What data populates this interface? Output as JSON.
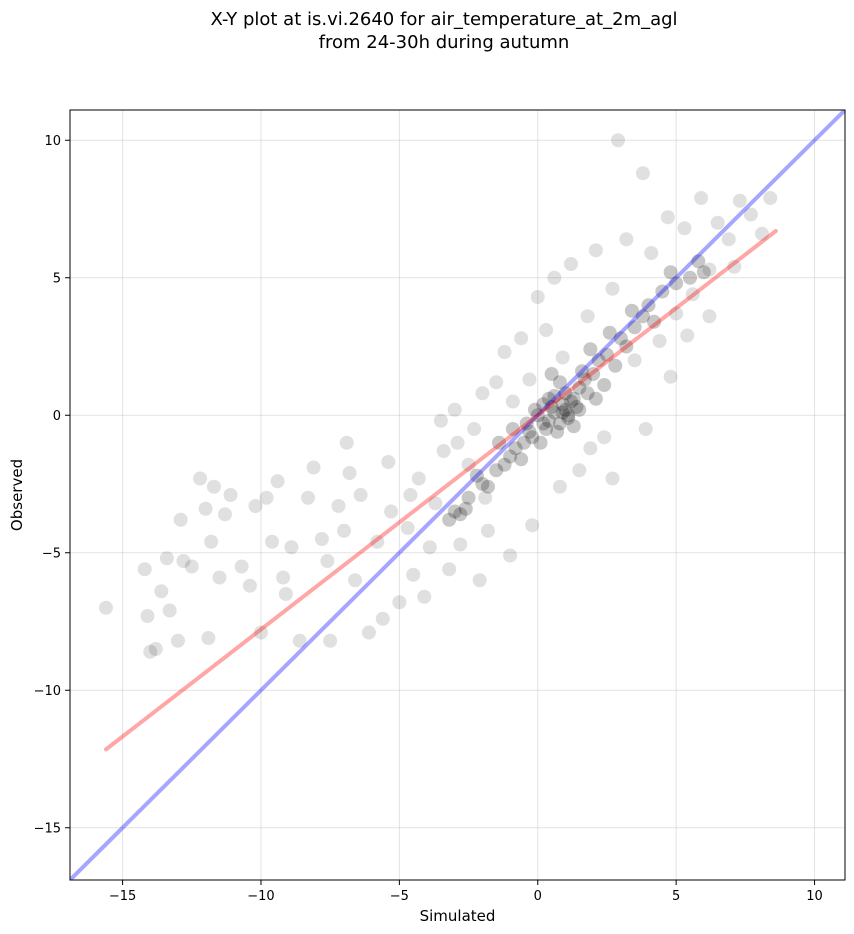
{
  "chart_data": {
    "type": "scatter",
    "title_lines": [
      "X-Y plot at is.vi.2640 for air_temperature_at_2m_agl",
      "from 24-30h during autumn"
    ],
    "xlabel": "Simulated",
    "ylabel": "Observed",
    "xlim": [
      -16.9,
      11.1
    ],
    "ylim": [
      -16.9,
      11.1
    ],
    "xticks": [
      -15,
      -10,
      -5,
      0,
      5,
      10
    ],
    "yticks": [
      -15,
      -10,
      -5,
      0,
      5,
      10
    ],
    "xtick_labels": [
      "−15",
      "−10",
      "−5",
      "0",
      "5",
      "10"
    ],
    "ytick_labels": [
      "−15",
      "−10",
      "−5",
      "0",
      "5",
      "10"
    ],
    "grid": true,
    "colors": {
      "points": "#000000",
      "identity_line": "#0000ff",
      "regression_line": "#ff0000"
    },
    "identity_line": {
      "x": [
        -16.9,
        11.1
      ],
      "y": [
        -16.9,
        11.1
      ]
    },
    "regression_line": {
      "x": [
        -15.6,
        8.6
      ],
      "y": [
        -12.15,
        6.7
      ]
    },
    "points_dense": [
      [
        0.0,
        0.0
      ],
      [
        0.5,
        0.3
      ],
      [
        1.0,
        0.2
      ],
      [
        0.8,
        -0.3
      ],
      [
        1.2,
        0.5
      ],
      [
        0.3,
        -0.5
      ],
      [
        -0.2,
        -0.8
      ],
      [
        1.5,
        1.0
      ],
      [
        2.0,
        1.5
      ],
      [
        1.8,
        0.8
      ],
      [
        0.6,
        0.7
      ],
      [
        -0.5,
        -1.0
      ],
      [
        -1.0,
        -1.5
      ],
      [
        -1.5,
        -2.0
      ],
      [
        -2.0,
        -2.5
      ],
      [
        -2.5,
        -3.0
      ],
      [
        -3.0,
        -3.5
      ],
      [
        -2.8,
        -3.6
      ],
      [
        -2.6,
        -3.4
      ],
      [
        -3.2,
        -3.8
      ],
      [
        -1.2,
        -1.8
      ],
      [
        -0.8,
        -1.2
      ],
      [
        0.2,
        0.4
      ],
      [
        0.9,
        0.1
      ],
      [
        1.1,
        -0.1
      ],
      [
        1.4,
        0.3
      ],
      [
        2.2,
        2.0
      ],
      [
        2.5,
        2.2
      ],
      [
        3.0,
        2.8
      ],
      [
        3.5,
        3.2
      ],
      [
        3.8,
        3.6
      ],
      [
        4.0,
        4.0
      ],
      [
        4.5,
        4.5
      ],
      [
        5.0,
        4.8
      ],
      [
        5.5,
        5.0
      ],
      [
        6.0,
        5.2
      ],
      [
        2.8,
        1.8
      ],
      [
        3.2,
        2.5
      ],
      [
        1.6,
        1.6
      ],
      [
        0.4,
        -0.2
      ],
      [
        -0.4,
        -0.3
      ],
      [
        -0.1,
        0.2
      ],
      [
        0.7,
        -0.6
      ],
      [
        1.3,
        -0.4
      ],
      [
        0.1,
        -1.0
      ],
      [
        -0.6,
        -1.6
      ],
      [
        -1.8,
        -2.6
      ],
      [
        -2.2,
        -2.2
      ],
      [
        -1.4,
        -1.0
      ],
      [
        -0.9,
        -0.5
      ],
      [
        1.0,
        0.8
      ],
      [
        0.8,
        1.2
      ],
      [
        1.7,
        1.3
      ],
      [
        2.4,
        1.1
      ],
      [
        2.1,
        0.6
      ],
      [
        0.5,
        1.5
      ],
      [
        1.9,
        2.4
      ],
      [
        2.6,
        3.0
      ],
      [
        3.4,
        3.8
      ],
      [
        4.2,
        3.4
      ],
      [
        4.8,
        5.2
      ],
      [
        5.8,
        5.6
      ],
      [
        1.1,
        0.0
      ],
      [
        0.9,
        0.4
      ],
      [
        0.6,
        0.1
      ],
      [
        1.3,
        0.6
      ],
      [
        0.2,
        -0.3
      ],
      [
        -0.3,
        -0.6
      ],
      [
        0.4,
        0.6
      ],
      [
        1.5,
        0.2
      ]
    ],
    "points_sparse": [
      [
        -15.6,
        -7.0
      ],
      [
        -14.2,
        -5.6
      ],
      [
        -14.1,
        -7.3
      ],
      [
        -14.0,
        -8.6
      ],
      [
        -13.8,
        -8.5
      ],
      [
        -13.6,
        -6.4
      ],
      [
        -13.4,
        -5.2
      ],
      [
        -13.0,
        -8.2
      ],
      [
        -12.9,
        -3.8
      ],
      [
        -12.8,
        -5.3
      ],
      [
        -12.5,
        -5.5
      ],
      [
        -12.2,
        -2.3
      ],
      [
        -12.0,
        -3.4
      ],
      [
        -11.8,
        -4.6
      ],
      [
        -11.7,
        -2.6
      ],
      [
        -11.5,
        -5.9
      ],
      [
        -11.3,
        -3.6
      ],
      [
        -11.1,
        -2.9
      ],
      [
        -10.7,
        -5.5
      ],
      [
        -10.4,
        -6.2
      ],
      [
        -10.2,
        -3.3
      ],
      [
        -10.0,
        -7.9
      ],
      [
        -9.8,
        -3.0
      ],
      [
        -9.6,
        -4.6
      ],
      [
        -9.4,
        -2.4
      ],
      [
        -9.2,
        -5.9
      ],
      [
        -8.9,
        -4.8
      ],
      [
        -8.6,
        -8.2
      ],
      [
        -8.3,
        -3.0
      ],
      [
        -8.1,
        -1.9
      ],
      [
        -7.8,
        -4.5
      ],
      [
        -7.5,
        -8.2
      ],
      [
        -7.2,
        -3.3
      ],
      [
        -7.0,
        -4.2
      ],
      [
        -6.8,
        -2.1
      ],
      [
        -6.6,
        -6.0
      ],
      [
        -6.4,
        -2.9
      ],
      [
        -6.1,
        -7.9
      ],
      [
        -5.8,
        -4.6
      ],
      [
        -5.6,
        -7.4
      ],
      [
        -5.3,
        -3.5
      ],
      [
        -5.0,
        -6.8
      ],
      [
        -4.7,
        -4.1
      ],
      [
        -4.5,
        -5.8
      ],
      [
        -4.3,
        -2.3
      ],
      [
        -4.1,
        -6.6
      ],
      [
        -3.9,
        -4.8
      ],
      [
        -3.7,
        -3.2
      ],
      [
        -3.5,
        -0.2
      ],
      [
        -3.2,
        -5.6
      ],
      [
        -3.0,
        0.2
      ],
      [
        -2.8,
        -4.7
      ],
      [
        -2.5,
        -1.8
      ],
      [
        -2.3,
        -0.5
      ],
      [
        -2.0,
        0.8
      ],
      [
        -1.8,
        -4.2
      ],
      [
        -1.5,
        1.2
      ],
      [
        -1.2,
        2.3
      ],
      [
        -0.9,
        0.5
      ],
      [
        -0.6,
        2.8
      ],
      [
        -0.3,
        1.3
      ],
      [
        0.0,
        4.3
      ],
      [
        0.3,
        3.1
      ],
      [
        0.6,
        5.0
      ],
      [
        0.9,
        2.1
      ],
      [
        1.2,
        5.5
      ],
      [
        1.5,
        -2.0
      ],
      [
        1.8,
        3.6
      ],
      [
        2.1,
        6.0
      ],
      [
        2.4,
        -0.8
      ],
      [
        2.7,
        4.6
      ],
      [
        2.9,
        10.0
      ],
      [
        3.2,
        6.4
      ],
      [
        3.5,
        2.0
      ],
      [
        3.8,
        8.8
      ],
      [
        4.1,
        5.9
      ],
      [
        4.4,
        2.7
      ],
      [
        4.7,
        7.2
      ],
      [
        5.0,
        3.7
      ],
      [
        5.3,
        6.8
      ],
      [
        5.6,
        4.4
      ],
      [
        5.9,
        7.9
      ],
      [
        6.2,
        5.3
      ],
      [
        6.5,
        7.0
      ],
      [
        6.9,
        6.4
      ],
      [
        7.3,
        7.8
      ],
      [
        7.7,
        7.3
      ],
      [
        8.1,
        6.6
      ],
      [
        8.4,
        7.9
      ],
      [
        2.7,
        -2.3
      ],
      [
        -1.0,
        -5.1
      ],
      [
        -2.1,
        -6.0
      ],
      [
        -4.6,
        -2.9
      ],
      [
        -3.4,
        -1.3
      ],
      [
        4.8,
        1.4
      ],
      [
        6.2,
        3.6
      ],
      [
        -6.9,
        -1.0
      ],
      [
        -11.9,
        -8.1
      ],
      [
        -13.3,
        -7.1
      ],
      [
        -9.1,
        -6.5
      ],
      [
        -7.6,
        -5.3
      ],
      [
        -5.4,
        -1.7
      ],
      [
        3.9,
        -0.5
      ],
      [
        -0.2,
        -4.0
      ],
      [
        1.9,
        -1.2
      ],
      [
        0.8,
        -2.6
      ],
      [
        -1.9,
        -3.0
      ],
      [
        -2.9,
        -1.0
      ],
      [
        5.4,
        2.9
      ],
      [
        7.1,
        5.4
      ]
    ]
  }
}
